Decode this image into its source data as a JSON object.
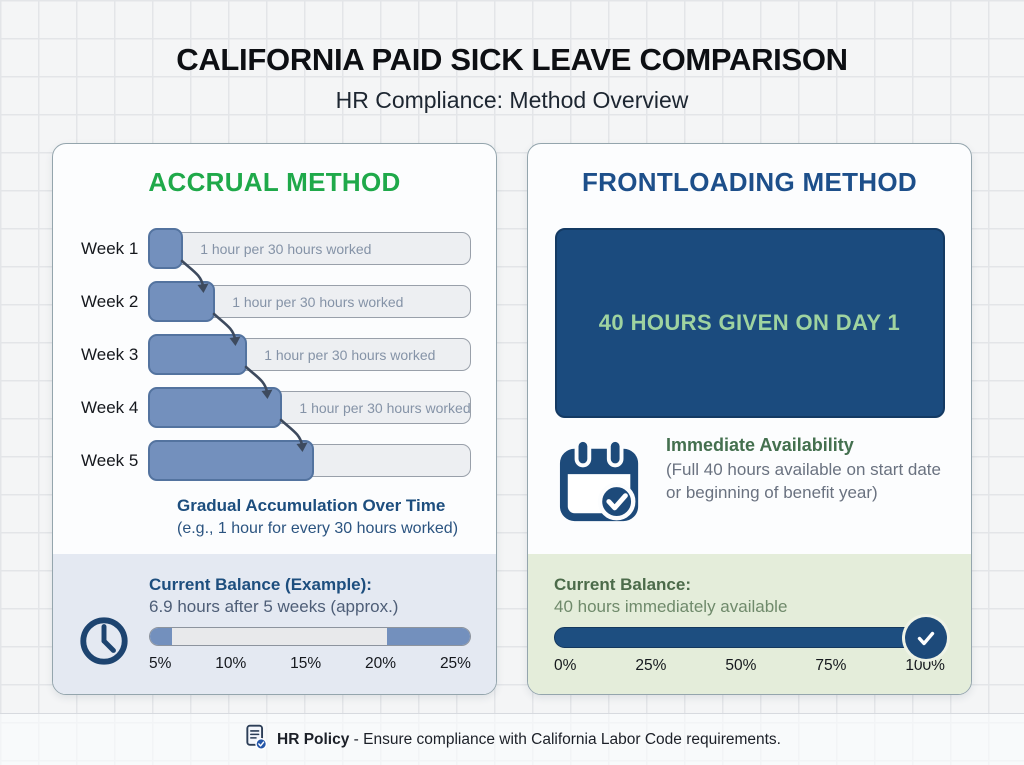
{
  "header": {
    "title": "CALIFORNIA PAID SICK LEAVE COMPARISON",
    "subtitle": "HR Compliance: Method Overview"
  },
  "accrual": {
    "title": "ACCRUAL METHOD",
    "weeks": [
      {
        "label": "Week 1",
        "fill_pct": 11,
        "bar_text": "1 hour per 30 hours worked"
      },
      {
        "label": "Week 2",
        "fill_pct": 21,
        "bar_text": "1 hour per 30 hours worked"
      },
      {
        "label": "Week 3",
        "fill_pct": 31,
        "bar_text": "1 hour per 30 hours worked"
      },
      {
        "label": "Week 4",
        "fill_pct": 42,
        "bar_text": "1 hour per 30 hours worked"
      },
      {
        "label": "Week 5",
        "fill_pct": 52,
        "bar_text": ""
      }
    ],
    "note_title": "Gradual Accumulation Over Time",
    "note_sub": "(e.g., 1 hour for every 30 hours worked)",
    "balance": {
      "title": "Current Balance (Example):",
      "subtitle": "6.9 hours after 5 weeks (approx.)",
      "left_cap_pct": 7,
      "right_fill_start_pct": 74,
      "ticks": [
        "5%",
        "10%",
        "15%",
        "20%",
        "25%"
      ]
    }
  },
  "frontloading": {
    "title": "FRONTLOADING METHOD",
    "big_box_text": "40 HOURS GIVEN ON DAY 1",
    "availability_title": "Immediate Availability",
    "availability_sub": "(Full 40 hours available on start date or beginning of benefit year)",
    "balance": {
      "title": "Current Balance:",
      "subtitle": "40 hours immediately available",
      "fill_pct": 100,
      "ticks": [
        "0%",
        "25%",
        "50%",
        "75%",
        "100%"
      ]
    }
  },
  "footer": {
    "label": "HR Policy",
    "text": "- Ensure compliance with California Labor Code requirements."
  },
  "colors": {
    "accent_green": "#1fa94a",
    "navy": "#1d4e7e",
    "bar_blue": "#7390bd",
    "box_navy": "#1b4b7e",
    "box_text_green": "#9fd3a0",
    "balance_blue_bg": "#e4e9f2",
    "balance_green_bg": "#e4edda"
  }
}
